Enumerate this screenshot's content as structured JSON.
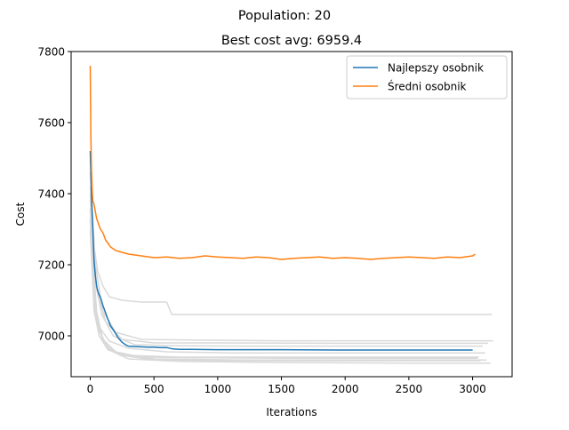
{
  "chart_data": {
    "type": "line",
    "suptitle": "Population: 20",
    "title": "Best cost avg: 6959.4",
    "xlabel": "Iterations",
    "ylabel": "Cost",
    "xlim": [
      -150,
      3310
    ],
    "ylim": [
      6885,
      7800
    ],
    "xticks": [
      0,
      500,
      1000,
      1500,
      2000,
      2500,
      3000
    ],
    "yticks": [
      7000,
      7200,
      7400,
      7600,
      7800
    ],
    "grid": false,
    "legend_position": "top-right",
    "colors": {
      "best": "#1f77b4",
      "mean": "#ff7f0e",
      "runs": "#d9d9d9"
    },
    "series": [
      {
        "name": "Najlepszy osobnik",
        "role": "best",
        "x": [
          0,
          10,
          20,
          30,
          40,
          50,
          60,
          70,
          80,
          100,
          120,
          140,
          160,
          180,
          200,
          220,
          250,
          280,
          300,
          350,
          400,
          450,
          500,
          550,
          600,
          650,
          700,
          800,
          1000,
          1500,
          2000,
          2500,
          3000
        ],
        "y": [
          7520,
          7390,
          7300,
          7210,
          7170,
          7140,
          7125,
          7115,
          7108,
          7085,
          7065,
          7045,
          7028,
          7017,
          7006,
          6994,
          6982,
          6974,
          6971,
          6970,
          6969,
          6968,
          6968,
          6967,
          6967,
          6963,
          6962,
          6962,
          6961,
          6961,
          6960,
          6960,
          6960
        ]
      },
      {
        "name": "Średni osobnik",
        "role": "mean",
        "x": [
          0,
          5,
          10,
          15,
          20,
          30,
          40,
          50,
          60,
          70,
          80,
          100,
          120,
          140,
          160,
          180,
          200,
          250,
          300,
          400,
          500,
          600,
          700,
          800,
          900,
          1000,
          1100,
          1200,
          1300,
          1400,
          1500,
          1600,
          1700,
          1800,
          1900,
          2000,
          2100,
          2200,
          2300,
          2400,
          2500,
          2600,
          2700,
          2800,
          2900,
          3000,
          3020
        ],
        "y": [
          7760,
          7560,
          7470,
          7410,
          7380,
          7370,
          7350,
          7330,
          7320,
          7310,
          7300,
          7290,
          7270,
          7260,
          7250,
          7245,
          7240,
          7235,
          7230,
          7225,
          7220,
          7222,
          7218,
          7220,
          7225,
          7222,
          7220,
          7218,
          7222,
          7220,
          7215,
          7218,
          7220,
          7222,
          7218,
          7220,
          7218,
          7215,
          7218,
          7220,
          7222,
          7220,
          7218,
          7222,
          7220,
          7225,
          7230
        ]
      }
    ],
    "runs": [
      {
        "x": [
          0,
          30,
          60,
          100,
          150,
          250,
          400,
          600,
          640,
          900,
          1500,
          2000,
          3000,
          3150
        ],
        "y": [
          7420,
          7250,
          7180,
          7140,
          7110,
          7100,
          7095,
          7095,
          7060,
          7060,
          7060,
          7060,
          7060,
          7060
        ]
      },
      {
        "x": [
          0,
          40,
          100,
          200,
          400,
          800,
          1500,
          2200,
          3000,
          3160
        ],
        "y": [
          7460,
          7200,
          7070,
          7010,
          6990,
          6988,
          6986,
          6986,
          6986,
          6986
        ]
      },
      {
        "x": [
          0,
          50,
          120,
          250,
          500,
          1000,
          2000,
          3000,
          3120
        ],
        "y": [
          7380,
          7130,
          7040,
          6990,
          6980,
          6980,
          6979,
          6979,
          6979
        ]
      },
      {
        "x": [
          0,
          40,
          90,
          180,
          350,
          700,
          1200,
          2000,
          3000,
          3080
        ],
        "y": [
          7400,
          7150,
          7060,
          7000,
          6975,
          6972,
          6971,
          6971,
          6971,
          6971
        ]
      },
      {
        "x": [
          0,
          30,
          80,
          150,
          300,
          600,
          1100,
          2000,
          3000,
          3100
        ],
        "y": [
          7350,
          7100,
          7020,
          6985,
          6965,
          6955,
          6952,
          6952,
          6952,
          6952
        ]
      },
      {
        "x": [
          0,
          30,
          70,
          140,
          300,
          700,
          1500,
          2500,
          3050
        ],
        "y": [
          7300,
          7070,
          7000,
          6960,
          6945,
          6940,
          6940,
          6940,
          6940
        ]
      },
      {
        "x": [
          0,
          40,
          100,
          200,
          400,
          900,
          1600,
          2600,
          3040
        ],
        "y": [
          7330,
          7080,
          6990,
          6955,
          6940,
          6938,
          6937,
          6937,
          6937
        ]
      },
      {
        "x": [
          0,
          50,
          120,
          250,
          500,
          1000,
          2000,
          3060
        ],
        "y": [
          7290,
          7040,
          6970,
          6945,
          6932,
          6930,
          6930,
          6930
        ]
      },
      {
        "x": [
          0,
          60,
          150,
          300,
          700,
          1500,
          2500,
          3140
        ],
        "y": [
          7320,
          7020,
          6960,
          6935,
          6928,
          6925,
          6923,
          6923
        ]
      },
      {
        "x": [
          0,
          40,
          100,
          220,
          500,
          1200,
          2200,
          3110
        ],
        "y": [
          7360,
          7060,
          6985,
          6948,
          6935,
          6932,
          6932,
          6932
        ]
      }
    ]
  }
}
